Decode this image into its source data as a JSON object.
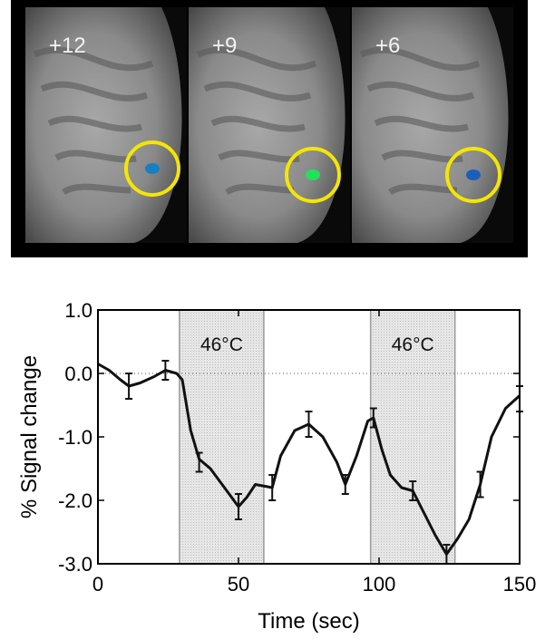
{
  "panels": [
    {
      "label": "+12"
    },
    {
      "label": "+9"
    },
    {
      "label": "+6"
    }
  ],
  "chart_data": {
    "type": "line",
    "ylabel": "% Signal change",
    "xlabel": "Time (sec)",
    "xlim": [
      0,
      150
    ],
    "ylim": [
      -3,
      1
    ],
    "xticks": [
      0,
      50,
      100,
      150
    ],
    "yticks": [
      {
        "value": 1,
        "label": "1.0"
      },
      {
        "value": 0,
        "label": "0.0"
      },
      {
        "value": -1,
        "label": "-1.0"
      },
      {
        "value": -2,
        "label": "-2.0"
      },
      {
        "value": -3,
        "label": "-3.0"
      }
    ],
    "hline": 0,
    "shaded": [
      {
        "range": [
          29,
          59
        ],
        "label": "46°C"
      },
      {
        "range": [
          97,
          127
        ],
        "label": "46°C"
      }
    ],
    "series": [
      {
        "color": "#111111",
        "x": [
          0,
          4,
          8,
          11,
          15,
          20,
          24,
          28,
          30,
          33,
          36,
          40,
          45,
          50,
          53,
          56,
          62,
          65,
          70,
          75,
          80,
          85,
          88,
          92,
          96,
          98,
          101,
          104,
          108,
          112,
          116,
          120,
          124,
          128,
          132,
          136,
          140,
          145,
          150
        ],
        "values": [
          0.15,
          0.05,
          -0.1,
          -0.2,
          -0.15,
          -0.05,
          0.05,
          0.0,
          -0.1,
          -0.9,
          -1.35,
          -1.5,
          -1.8,
          -2.1,
          -1.95,
          -1.75,
          -1.8,
          -1.3,
          -0.9,
          -0.8,
          -1.0,
          -1.4,
          -1.75,
          -1.3,
          -0.75,
          -0.7,
          -1.2,
          -1.6,
          -1.8,
          -1.85,
          -2.2,
          -2.55,
          -2.85,
          -2.6,
          -2.3,
          -1.75,
          -1.0,
          -0.55,
          -0.35
        ]
      }
    ],
    "errorbars": {
      "x": [
        11,
        24,
        36,
        50,
        62,
        75,
        88,
        98,
        112,
        124,
        136,
        150
      ],
      "values": [
        -0.2,
        0.05,
        -1.4,
        -2.1,
        -1.8,
        -0.8,
        -1.75,
        -0.7,
        -1.85,
        -2.85,
        -1.75,
        -0.4
      ],
      "errors": [
        0.2,
        0.15,
        0.15,
        0.2,
        0.2,
        0.2,
        0.15,
        0.15,
        0.15,
        0.15,
        0.2,
        0.2
      ]
    }
  }
}
